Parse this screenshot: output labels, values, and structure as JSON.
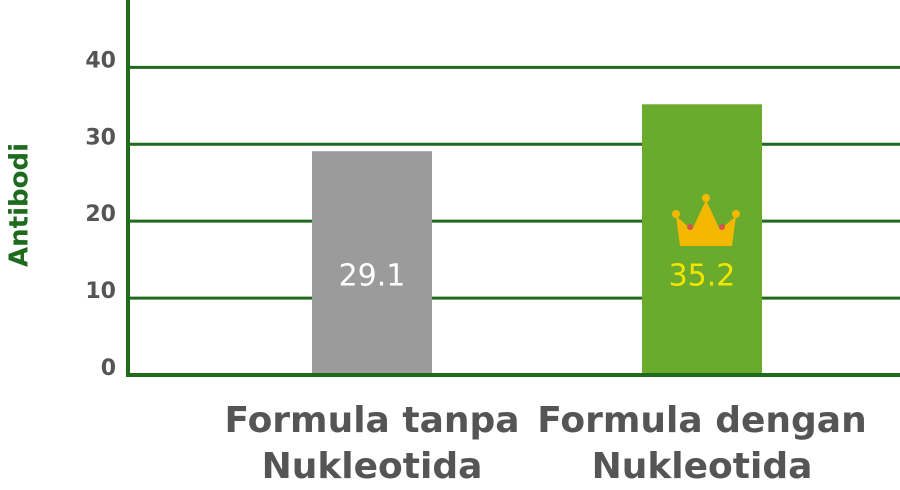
{
  "chart_data": {
    "type": "bar",
    "y_label": "Antibodi",
    "categories": [
      "Formula tanpa Nukleotida",
      "Formula dengan Nukleotida"
    ],
    "values": [
      29.1,
      35.2
    ],
    "colors": [
      "#9b9b9b",
      "#6aab2e"
    ],
    "value_label_colors": [
      "#ffffff",
      "#f2e600"
    ],
    "ylim": [
      0,
      48.5
    ],
    "yticks": [
      0,
      10,
      20,
      30,
      40
    ],
    "grid": true
  }
}
